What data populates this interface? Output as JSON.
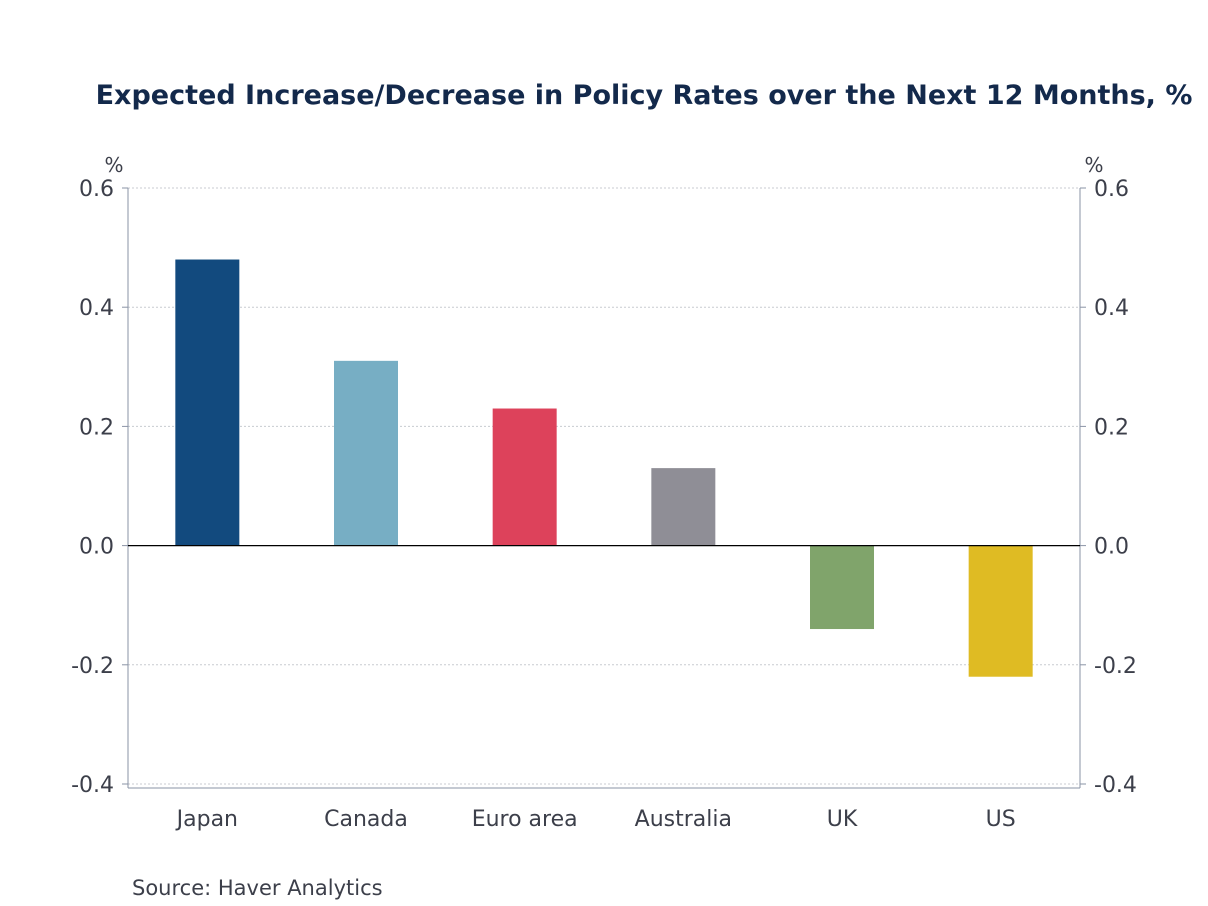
{
  "chart_data": {
    "type": "bar",
    "title": "Expected Increase/Decrease in Policy Rates over the Next 12 Months, %",
    "y_unit_left": "%",
    "y_unit_right": "%",
    "categories": [
      "Japan",
      "Canada",
      "Euro area",
      "Australia",
      "UK",
      "US"
    ],
    "values": [
      0.48,
      0.31,
      0.23,
      0.13,
      -0.14,
      -0.22
    ],
    "colors": [
      "#124a7e",
      "#77aec4",
      "#dd425b",
      "#8f8e96",
      "#80a46b",
      "#dfbb23"
    ],
    "ylim": [
      -0.4,
      0.6
    ],
    "yticks": [
      "0.6",
      "0.4",
      "0.2",
      "0.0",
      "-0.2",
      "-0.4"
    ],
    "ytick_values": [
      0.6,
      0.4,
      0.2,
      0.0,
      -0.2,
      -0.4
    ],
    "grid": true,
    "source": "Source:  Haver Analytics"
  }
}
